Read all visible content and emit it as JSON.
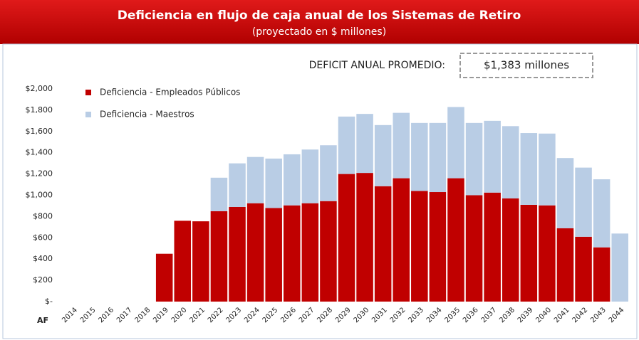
{
  "chart_data": {
    "type": "stacked_bar",
    "title": "Deficiencia en flujo de caja anual de los Sistemas de Retiro",
    "subtitle": "(proyectado en $ millones)",
    "annotation": {
      "label": "DEFICIT ANUAL PROMEDIO:",
      "value": "$1,383 millones"
    },
    "xlabel": "AF",
    "categories": [
      "2014",
      "2015",
      "2016",
      "2017",
      "2018",
      "2019",
      "2020",
      "2021",
      "2022",
      "2023",
      "2024",
      "2025",
      "2026",
      "2027",
      "2028",
      "2029",
      "2030",
      "2031",
      "2032",
      "2033",
      "2034",
      "2035",
      "2036",
      "2037",
      "2038",
      "2039",
      "2040",
      "2041",
      "2042",
      "2043",
      "2044"
    ],
    "series": [
      {
        "name": "Deficiencia - Empleados Públicos",
        "color": "#c00000",
        "values": [
          0,
          0,
          0,
          0,
          0,
          450,
          760,
          755,
          850,
          890,
          925,
          880,
          905,
          925,
          945,
          1200,
          1210,
          1085,
          1160,
          1040,
          1030,
          1160,
          1000,
          1025,
          970,
          910,
          905,
          690,
          610,
          510,
          0
        ]
      },
      {
        "name": "Deficiencia - Maestros",
        "color": "#b9cde5",
        "values": [
          0,
          0,
          0,
          0,
          0,
          0,
          0,
          0,
          315,
          410,
          435,
          465,
          480,
          505,
          525,
          540,
          555,
          575,
          615,
          640,
          650,
          670,
          680,
          675,
          680,
          675,
          675,
          660,
          650,
          640,
          640
        ]
      }
    ],
    "ylim": [
      0,
      2000
    ],
    "yticks": [
      {
        "value": 0,
        "label": "$-"
      },
      {
        "value": 200,
        "label": "$200"
      },
      {
        "value": 400,
        "label": "$400"
      },
      {
        "value": 600,
        "label": "$600"
      },
      {
        "value": 800,
        "label": "$800"
      },
      {
        "value": 1000,
        "label": "$1,000"
      },
      {
        "value": 1200,
        "label": "$1,200"
      },
      {
        "value": 1400,
        "label": "$1,400"
      },
      {
        "value": 1600,
        "label": "$1,600"
      },
      {
        "value": 1800,
        "label": "$1,800"
      },
      {
        "value": 2000,
        "label": "$2,000"
      }
    ],
    "grid": false,
    "legend": "upper left"
  }
}
